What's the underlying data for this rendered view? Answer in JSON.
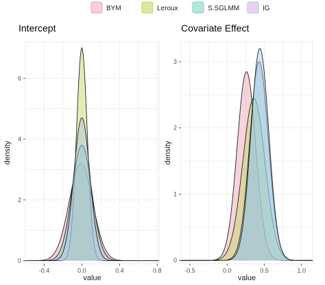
{
  "chart_data": [
    {
      "type": "area",
      "title": "Intercept",
      "xlabel": "value",
      "ylabel": "density",
      "xlim": [
        -0.6,
        0.82
      ],
      "ylim": [
        -0.1,
        7.2
      ],
      "x_ticks": [
        -0.4,
        0.0,
        0.4,
        0.8
      ],
      "x_tick_labels": [
        "-0.4",
        "0.0",
        "0.4",
        "0.8"
      ],
      "y_ticks": [
        0,
        2,
        4,
        6
      ],
      "y_tick_labels": [
        "0",
        "2",
        "4",
        "6"
      ],
      "grid": true,
      "series": [
        {
          "name": "BYM",
          "mean": -0.01,
          "sd": 0.125,
          "peak": 3.2
        },
        {
          "name": "Leroux",
          "mean": 0.0,
          "sd": 0.057,
          "peak": 7.0
        },
        {
          "name": "S.SGLMM",
          "mean": 0.0,
          "sd": 0.105,
          "peak": 3.8
        },
        {
          "name": "IG",
          "mean": 0.0,
          "sd": 0.085,
          "peak": 4.7
        }
      ]
    },
    {
      "type": "area",
      "title": "Covariate Effect",
      "xlabel": "value",
      "ylabel": "density",
      "xlim": [
        -0.62,
        1.15
      ],
      "ylim": [
        -0.05,
        3.3
      ],
      "x_ticks": [
        -0.5,
        0.0,
        0.5,
        1.0
      ],
      "x_tick_labels": [
        "-0.5",
        "0.0",
        "0.5",
        "1.0"
      ],
      "y_ticks": [
        0,
        1,
        2,
        3
      ],
      "y_tick_labels": [
        "0",
        "1",
        "2",
        "3"
      ],
      "grid": true,
      "series": [
        {
          "name": "BYM",
          "mean": 0.26,
          "sd": 0.125,
          "peak": 2.85
        },
        {
          "name": "Leroux",
          "mean": 0.36,
          "sd": 0.15,
          "peak": 2.45
        },
        {
          "name": "S.SGLMM",
          "mean": 0.43,
          "sd": 0.125,
          "peak": 3.0
        },
        {
          "name": "IG",
          "mean": 0.44,
          "sd": 0.12,
          "peak": 3.2
        }
      ]
    }
  ],
  "legend": {
    "placement": "top",
    "items": [
      {
        "name": "BYM",
        "color": "#f7cfd8"
      },
      {
        "name": "Leroux",
        "color": "#dde7a3"
      },
      {
        "name": "S.SGLMM",
        "color": "#b3e7dd"
      },
      {
        "name": "IG",
        "color": "#ead2ef"
      }
    ]
  },
  "colors": {
    "BYM": "#e8a0b2",
    "Leroux": "#c7d45e",
    "S.SGLMM": "#7fd0c5",
    "IG": "#a9c3ee",
    "panel_bg": "#ffffff",
    "grid": "#ebebeb",
    "outline": "#222222"
  }
}
